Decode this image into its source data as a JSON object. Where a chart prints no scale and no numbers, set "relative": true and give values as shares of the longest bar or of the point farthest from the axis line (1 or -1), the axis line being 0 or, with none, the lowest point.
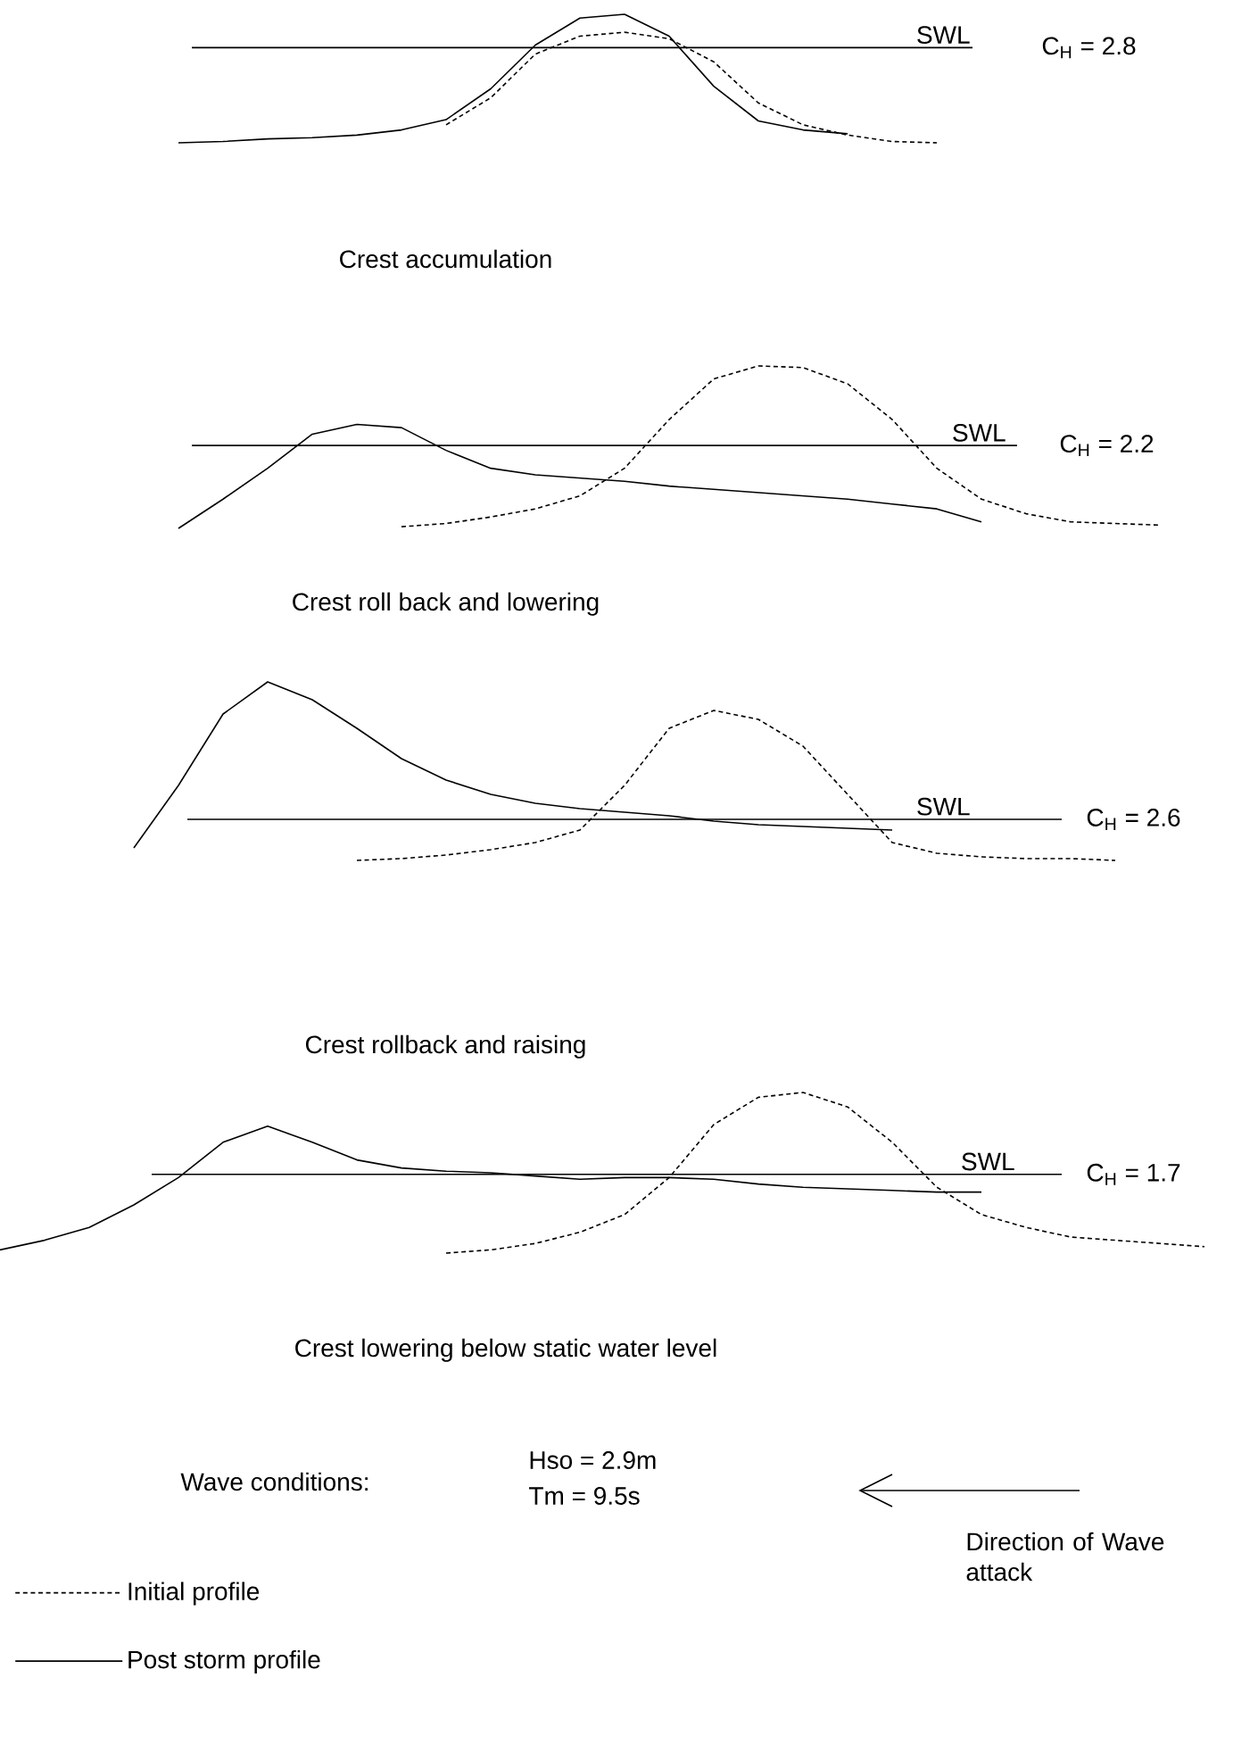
{
  "chart_data": [
    {
      "type": "line",
      "relative": true,
      "xlabel": "Crest accumulation",
      "categories": [
        null,
        null,
        null,
        null,
        null,
        null,
        null,
        null,
        null,
        null,
        null,
        null,
        null,
        null,
        null,
        null,
        null,
        null,
        null,
        null,
        null,
        null,
        null,
        null,
        null,
        null,
        null,
        null
      ],
      "series": [
        {
          "color": "#000000",
          "line_style": "dashed",
          "values": [
            null,
            null,
            null,
            null,
            null,
            null,
            null,
            null,
            null,
            null,
            0.14,
            0.35,
            0.69,
            0.83,
            0.86,
            0.81,
            0.63,
            0.31,
            0.14,
            0.06,
            0.01,
            0,
            null,
            null,
            null,
            null,
            null,
            null
          ]
        },
        {
          "color": "#000000",
          "line_style": "solid",
          "values": [
            null,
            null,
            null,
            null,
            0,
            0.01,
            0.03,
            0.04,
            0.06,
            0.1,
            0.18,
            0.42,
            0.76,
            0.97,
            1,
            0.83,
            0.44,
            0.17,
            0.1,
            0.07,
            null,
            null,
            null,
            null,
            null,
            null,
            null,
            null
          ]
        }
      ],
      "ref_lines": [
        {
          "axis": "y",
          "value": 0.74,
          "label": "SWL"
        }
      ],
      "annotations": [
        "C$_{H}$ = 2.8"
      ]
    },
    {
      "type": "line",
      "relative": true,
      "xlabel": "Crest roll back and lowering",
      "categories": [
        null,
        null,
        null,
        null,
        null,
        null,
        null,
        null,
        null,
        null,
        null,
        null,
        null,
        null,
        null,
        null,
        null,
        null,
        null,
        null,
        null,
        null,
        null,
        null,
        null,
        null,
        null,
        null
      ],
      "series": [
        {
          "color": "#000000",
          "line_style": "dashed",
          "values": [
            null,
            null,
            null,
            null,
            null,
            null,
            null,
            null,
            null,
            0.01,
            0.03,
            0.07,
            0.12,
            0.2,
            0.37,
            0.67,
            0.92,
            1,
            0.99,
            0.89,
            0.67,
            0.37,
            0.18,
            0.09,
            0.04,
            0.03,
            0.02,
            null
          ]
        },
        {
          "color": "#000000",
          "line_style": "solid",
          "values": [
            null,
            null,
            null,
            null,
            0,
            0.18,
            0.37,
            0.58,
            0.64,
            0.62,
            0.48,
            0.37,
            0.33,
            0.31,
            0.29,
            0.26,
            0.24,
            0.22,
            0.2,
            0.18,
            0.15,
            0.12,
            0.04,
            null,
            null,
            null,
            null,
            null
          ]
        }
      ],
      "ref_lines": [
        {
          "axis": "y",
          "value": 0.51,
          "label": "SWL"
        }
      ],
      "annotations": [
        "C$_{H}$ = 2.2"
      ]
    },
    {
      "type": "line",
      "relative": true,
      "xlabel": "Crest rollback and raising",
      "categories": [
        null,
        null,
        null,
        null,
        null,
        null,
        null,
        null,
        null,
        null,
        null,
        null,
        null,
        null,
        null,
        null,
        null,
        null,
        null,
        null,
        null,
        null,
        null,
        null,
        null,
        null,
        null,
        null
      ],
      "series": [
        {
          "color": "#000000",
          "line_style": "dashed",
          "values": [
            null,
            null,
            null,
            null,
            null,
            null,
            null,
            null,
            0,
            0.01,
            0.03,
            0.06,
            0.1,
            0.17,
            0.42,
            0.74,
            0.84,
            0.79,
            0.64,
            0.37,
            0.1,
            0.04,
            0.02,
            0.01,
            0.01,
            0,
            null,
            null
          ]
        },
        {
          "color": "#000000",
          "line_style": "solid",
          "values": [
            null,
            null,
            null,
            0.07,
            0.42,
            0.82,
            1,
            0.9,
            0.74,
            0.57,
            0.45,
            0.37,
            0.32,
            0.29,
            0.27,
            0.25,
            0.22,
            0.2,
            0.19,
            0.18,
            0.17,
            null,
            null,
            null,
            null,
            null,
            null,
            null
          ]
        }
      ],
      "ref_lines": [
        {
          "axis": "y",
          "value": 0.23,
          "label": "SWL"
        }
      ],
      "annotations": [
        "C$_{H}$ = 2.6"
      ]
    },
    {
      "type": "line",
      "relative": true,
      "xlabel": "Crest lowering below static water level",
      "legend": "bottom left",
      "categories": [
        null,
        null,
        null,
        null,
        null,
        null,
        null,
        null,
        null,
        null,
        null,
        null,
        null,
        null,
        null,
        null,
        null,
        null,
        null,
        null,
        null,
        null,
        null,
        null,
        null,
        null,
        null,
        null
      ],
      "series": [
        {
          "name": "Initial profile",
          "color": "#000000",
          "line_style": "dashed",
          "values": [
            null,
            null,
            null,
            null,
            null,
            null,
            null,
            null,
            null,
            null,
            0,
            0.02,
            0.06,
            0.13,
            0.24,
            0.47,
            0.8,
            0.97,
            1,
            0.91,
            0.69,
            0.41,
            0.24,
            0.16,
            0.1,
            0.08,
            0.06,
            0.04
          ]
        },
        {
          "name": "Post storm profile",
          "color": "#000000",
          "line_style": "solid",
          "values": [
            0.02,
            0.08,
            0.16,
            0.3,
            0.47,
            0.69,
            0.79,
            0.69,
            0.58,
            0.53,
            0.51,
            0.5,
            0.48,
            0.46,
            0.47,
            0.47,
            0.46,
            0.43,
            0.41,
            0.4,
            0.39,
            0.38,
            0.38,
            null,
            null,
            null,
            null,
            null
          ]
        }
      ],
      "ref_lines": [
        {
          "axis": "y",
          "value": 0.49,
          "label": "SWL"
        }
      ],
      "annotations": [
        "C$_{H}$ = 1.7",
        "Wave conditions:",
        "Hso = 2.9m",
        "Tm = 9.5s",
        "Direction of Wave attack"
      ]
    }
  ]
}
